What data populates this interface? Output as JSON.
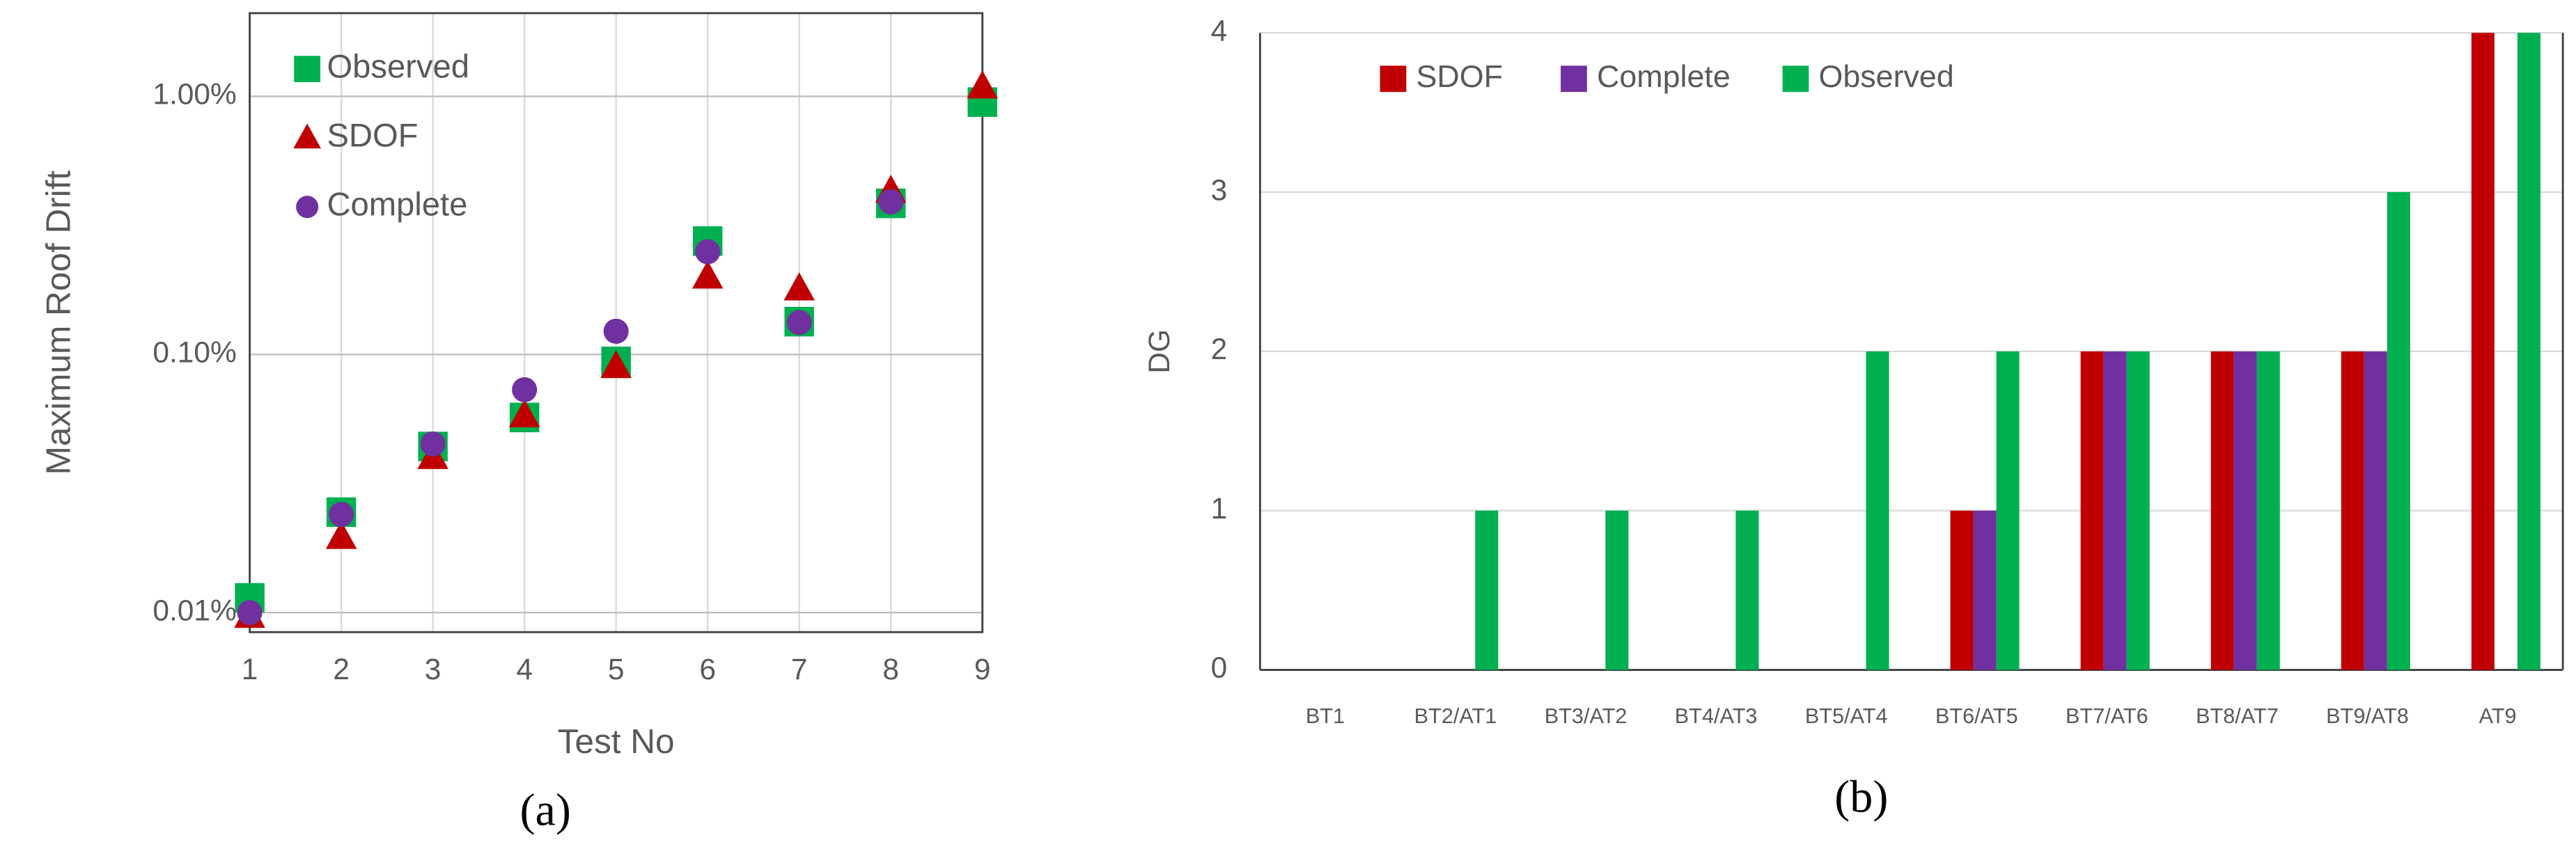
{
  "chart_data": [
    {
      "type": "scatter",
      "y_label": "Maximum Roof Drift",
      "x_label": "Test No",
      "panel_label": "(a)",
      "x": [
        1,
        2,
        3,
        4,
        5,
        6,
        7,
        8,
        9
      ],
      "xlim": [
        1,
        9
      ],
      "xticks": [
        1,
        2,
        3,
        4,
        5,
        6,
        7,
        8,
        9
      ],
      "ylim": [
        0.0084,
        2.1
      ],
      "log_y": true,
      "yticks": [
        {
          "value": 0.01,
          "label": "0.01%"
        },
        {
          "value": 0.1,
          "label": "0.10%"
        },
        {
          "value": 1,
          "label": "1.00%"
        }
      ],
      "grid": true,
      "legend": "upper left",
      "series": [
        {
          "name": "Observed",
          "color": "#00b050",
          "marker": "square",
          "values": [
            0.0114,
            0.0245,
            0.044,
            0.057,
            0.094,
            0.275,
            0.134,
            0.385,
            0.95
          ]
        },
        {
          "name": "SDOF",
          "color": "#c00000",
          "marker": "triangle",
          "values": [
            0.0097,
            0.0196,
            0.04,
            0.058,
            0.09,
            0.2,
            0.18,
            0.43,
            1.09
          ]
        },
        {
          "name": "Complete",
          "color": "#7030a0",
          "marker": "circle",
          "values": [
            0.01,
            0.024,
            0.045,
            0.073,
            0.123,
            0.25,
            0.133,
            0.39,
            null
          ]
        }
      ]
    },
    {
      "type": "bar",
      "y_label": "DG",
      "panel_label": "(b)",
      "categories": [
        "BT1",
        "BT2/AT1",
        "BT3/AT2",
        "BT4/AT3",
        "BT5/AT4",
        "BT6/AT5",
        "BT7/AT6",
        "BT8/AT7",
        "BT9/AT8",
        "AT9"
      ],
      "ylim": [
        0,
        4
      ],
      "yticks": [
        0,
        1,
        2,
        3,
        4
      ],
      "grid": true,
      "legend": "upper left",
      "series": [
        {
          "name": "SDOF",
          "color": "#c00000",
          "values": [
            0,
            0,
            0,
            0,
            0,
            1,
            2,
            2,
            2,
            4
          ]
        },
        {
          "name": "Complete",
          "color": "#7030a0",
          "values": [
            0,
            0,
            0,
            0,
            0,
            1,
            2,
            2,
            2,
            0
          ]
        },
        {
          "name": "Observed",
          "color": "#00b050",
          "values": [
            0,
            1,
            1,
            1,
            2,
            2,
            2,
            2,
            3,
            4
          ]
        }
      ]
    }
  ]
}
